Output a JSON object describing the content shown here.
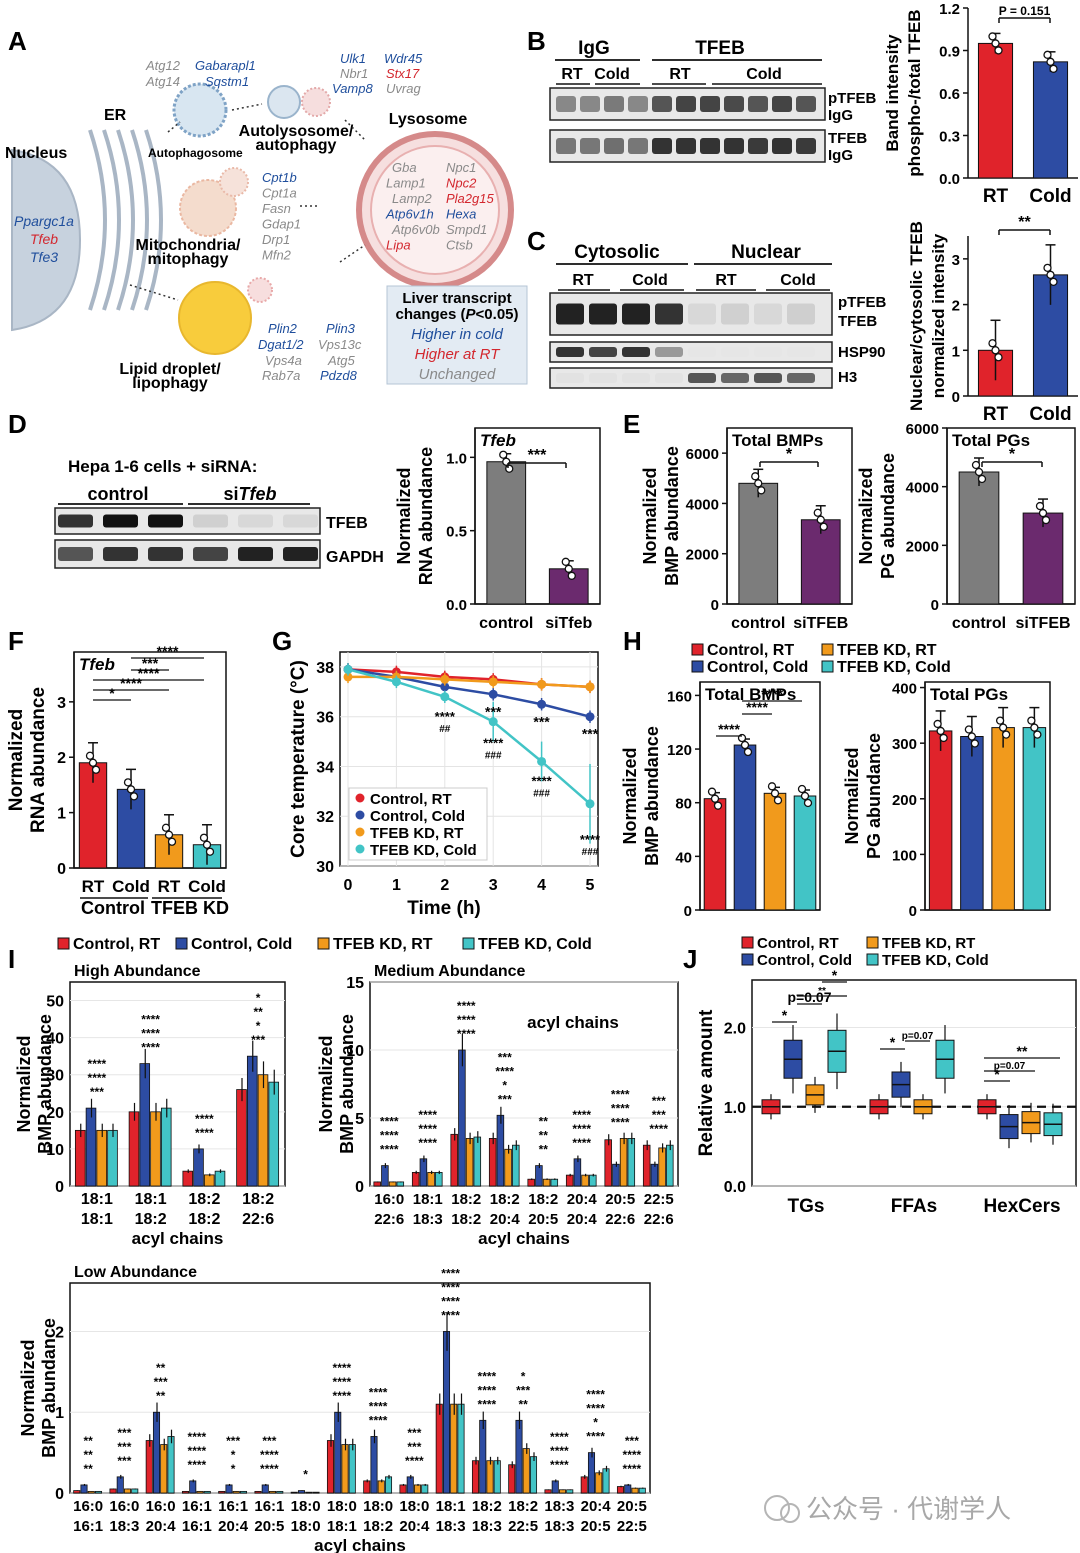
{
  "colors": {
    "red": "#e0232b",
    "blue": "#2d4ca3",
    "orange": "#f19a1c",
    "cyan": "#42c4c6",
    "gray": "#7d7d7d",
    "purple": "#6b2a6e",
    "gene_up_cold": "#1f4e9c",
    "gene_up_rt": "#d3272e",
    "gene_unchanged": "#8a8a8a"
  },
  "panels": {
    "A": {
      "letter": "A",
      "nucleus": "Nucleus",
      "er": "ER",
      "autophagosome": "Autophagosome",
      "autolysosome": "Autolysosome/ autophagy",
      "mito": "Mitochondria/ mitophagy",
      "lysosome": "Lysosome",
      "lipid": "Lipid droplet/ lipophagy",
      "nucleus_genes": [
        {
          "name": "Ppargc1a",
          "c": "bl"
        },
        {
          "name": "Tfeb",
          "c": "rd"
        },
        {
          "name": "Tfe3",
          "c": "bl"
        }
      ],
      "autophagosome_genes": [
        {
          "name": "Atg12",
          "c": "g"
        },
        {
          "name": "Gabarapl1",
          "c": "bl"
        },
        {
          "name": "Atg14",
          "c": "g"
        },
        {
          "name": "Sqstm1",
          "c": "bl"
        }
      ],
      "autolyso_genes": [
        {
          "name": "Ulk1",
          "c": "bl"
        },
        {
          "name": "Wdr45",
          "c": "bl"
        },
        {
          "name": "Nbr1",
          "c": "g"
        },
        {
          "name": "Stx17",
          "c": "rd"
        },
        {
          "name": "Vamp8",
          "c": "bl"
        },
        {
          "name": "Uvrag",
          "c": "g"
        }
      ],
      "mito_genes": [
        {
          "name": "Cpt1b",
          "c": "bl"
        },
        {
          "name": "Cpt1a",
          "c": "g"
        },
        {
          "name": "Fasn",
          "c": "g"
        },
        {
          "name": "Gdap1",
          "c": "g"
        },
        {
          "name": "Drp1",
          "c": "g"
        },
        {
          "name": "Mfn2",
          "c": "g"
        }
      ],
      "lyso_genes": [
        {
          "name": "Gba",
          "c": "g"
        },
        {
          "name": "Npc1",
          "c": "g"
        },
        {
          "name": "Lamp1",
          "c": "g"
        },
        {
          "name": "Npc2",
          "c": "rd"
        },
        {
          "name": "Lamp2",
          "c": "g"
        },
        {
          "name": "Pla2g15",
          "c": "rd"
        },
        {
          "name": "Atp6v1h",
          "c": "bl"
        },
        {
          "name": "Hexa",
          "c": "bl"
        },
        {
          "name": "Atp6v0b",
          "c": "g"
        },
        {
          "name": "Smpd1",
          "c": "g"
        },
        {
          "name": "Lipa",
          "c": "rd"
        },
        {
          "name": "Ctsb",
          "c": "g"
        }
      ],
      "lipid_genes": [
        {
          "name": "Plin2",
          "c": "bl"
        },
        {
          "name": "Plin3",
          "c": "bl"
        },
        {
          "name": "Dgat1/2",
          "c": "bl"
        },
        {
          "name": "Vps13c",
          "c": "g"
        },
        {
          "name": "Vps4a",
          "c": "g"
        },
        {
          "name": "Atg5",
          "c": "g"
        },
        {
          "name": "Rab7a",
          "c": "g"
        },
        {
          "name": "Pdzd8",
          "c": "bl"
        }
      ],
      "legend": {
        "title1": "Liver transcript",
        "title2": "changes (",
        "p": "P",
        "title3": "<0.05)",
        "higher_cold": "Higher in cold",
        "higher_rt": "Higher at RT",
        "unchanged": "Unchanged"
      }
    },
    "B": {
      "letter": "B",
      "igg": "IgG",
      "tfeb": "TFEB",
      "rt": "RT",
      "cold": "Cold",
      "row1a": "pTFEB",
      "row1b": "IgG",
      "row2a": "TFEB",
      "row2b": "IgG"
    },
    "C": {
      "letter": "C",
      "cytosolic": "Cytosolic",
      "nuclear": "Nuclear",
      "rt": "RT",
      "cold": "Cold",
      "row1a": "pTFEB",
      "row1b": "TFEB",
      "row2": "HSP90",
      "row3": "H3"
    },
    "D": {
      "letter": "D",
      "title": "Hepa 1-6 cells + siRNA:",
      "control": "control",
      "si": "si",
      "tfeb_it": "Tfeb",
      "row1": "TFEB",
      "row2": "GAPDH"
    },
    "E": {
      "letter": "E"
    },
    "F": {
      "letter": "F"
    },
    "G": {
      "letter": "G"
    },
    "H": {
      "letter": "H"
    },
    "I": {
      "letter": "I"
    },
    "J": {
      "letter": "J"
    }
  },
  "legend4": {
    "c_rt": "Control, RT",
    "c_cold": "Control, Cold",
    "k_rt": "TFEB KD, RT",
    "k_cold": "TFEB KD, Cold"
  },
  "watermark": "公众号 · 代谢学人",
  "chart_data": [
    {
      "id": "B",
      "type": "bar",
      "categories": [
        "RT",
        "Cold"
      ],
      "values": [
        0.95,
        0.82
      ],
      "ylabel": "Band intensity phospho-/total TFEB",
      "ylim": [
        0,
        1.2
      ],
      "yticks": [
        "0.0",
        "0.3",
        "0.6",
        "0.9",
        "1.2"
      ],
      "annotation": "P = 0.151"
    },
    {
      "id": "C",
      "type": "bar",
      "categories": [
        "RT",
        "Cold"
      ],
      "values": [
        1.0,
        2.65
      ],
      "ylabel": "Nuclear/cytosolic TFEB normalized intensity",
      "ylim": [
        0,
        3.5
      ],
      "yticks": [
        "0",
        "1",
        "2",
        "3"
      ],
      "annotation": "**"
    },
    {
      "id": "D",
      "type": "bar",
      "title": "Tfeb",
      "categories": [
        "control",
        "siTfeb"
      ],
      "values": [
        0.97,
        0.24
      ],
      "ylabel": "Normalized RNA abundance",
      "ylim": [
        0,
        1.2
      ],
      "yticks": [
        "0.0",
        "0.5",
        "1.0"
      ],
      "annotation": "***"
    },
    {
      "id": "E1",
      "type": "bar",
      "title": "Total BMPs",
      "categories": [
        "control",
        "siTFEB"
      ],
      "values": [
        4800,
        3350
      ],
      "ylabel": "Normalized BMP abundance",
      "ylim": [
        0,
        7000
      ],
      "yticks": [
        "0",
        "2000",
        "4000",
        "6000"
      ],
      "annotation": "*"
    },
    {
      "id": "E2",
      "type": "bar",
      "title": "Total PGs",
      "categories": [
        "control",
        "siTFEB"
      ],
      "values": [
        4500,
        3100
      ],
      "ylabel": "Normalized PG abundance",
      "ylim": [
        0,
        6000
      ],
      "yticks": [
        "0",
        "2000",
        "4000",
        "6000"
      ],
      "annotation": "*"
    },
    {
      "id": "F",
      "type": "bar",
      "title": "Tfeb",
      "categories": [
        "RT",
        "Cold",
        "RT",
        "Cold"
      ],
      "groups": [
        "Control",
        "TFEB KD"
      ],
      "values": [
        1.9,
        1.42,
        0.6,
        0.42
      ],
      "ylabel": "Normalized RNA abundance",
      "ylim": [
        0,
        3.9
      ],
      "yticks": [
        "0",
        "1",
        "2",
        "3"
      ],
      "annotations": [
        "*",
        "****",
        "***",
        "****",
        "****"
      ]
    },
    {
      "id": "G",
      "type": "line",
      "x": [
        0,
        1,
        2,
        3,
        4,
        5
      ],
      "xlabel": "Time (h)",
      "ylabel": "Core temperature (°C)",
      "ylim": [
        30,
        38.6
      ],
      "yticks": [
        "30",
        "32",
        "34",
        "36",
        "38"
      ],
      "series": [
        {
          "name": "Control, RT",
          "values": [
            37.9,
            37.8,
            37.6,
            37.5,
            37.3,
            37.2
          ]
        },
        {
          "name": "Control, Cold",
          "values": [
            37.9,
            37.6,
            37.2,
            36.9,
            36.5,
            36.0
          ]
        },
        {
          "name": "TFEB KD, RT",
          "values": [
            37.6,
            37.6,
            37.5,
            37.4,
            37.3,
            37.2
          ]
        },
        {
          "name": "TFEB KD, Cold",
          "values": [
            37.9,
            37.4,
            36.8,
            35.8,
            34.2,
            32.5
          ]
        }
      ],
      "annotations": [
        {
          "x": 2,
          "stars": "****",
          "hash": "##"
        },
        {
          "x": 3,
          "stars": "****",
          "hash": "###"
        },
        {
          "x": 4,
          "stars": "****",
          "hash": "###"
        },
        {
          "x": 5,
          "stars": "****",
          "hash": "###"
        },
        {
          "x": 3,
          "top": "***"
        },
        {
          "x": 4,
          "top": "***"
        },
        {
          "x": 5,
          "top": "***"
        }
      ]
    },
    {
      "id": "H1",
      "type": "bar",
      "title": "Total BMPs",
      "categories": [
        "Control, RT",
        "Control, Cold",
        "TFEB KD, RT",
        "TFEB KD, Cold"
      ],
      "values": [
        83,
        123,
        87,
        85
      ],
      "ylabel": "Normalized BMP abundance",
      "ylim": [
        0,
        170
      ],
      "yticks": [
        "0",
        "40",
        "80",
        "120",
        "160"
      ],
      "annotations": [
        "****",
        "****",
        "****"
      ]
    },
    {
      "id": "H2",
      "type": "bar",
      "title": "Total PGs",
      "categories": [
        "Control, RT",
        "Control, Cold",
        "TFEB KD, RT",
        "TFEB KD, Cold"
      ],
      "values": [
        322,
        312,
        328,
        328
      ],
      "ylabel": "Normalized PG abundance",
      "ylim": [
        0,
        410
      ],
      "yticks": [
        "0",
        "100",
        "200",
        "300",
        "400"
      ]
    },
    {
      "id": "I1",
      "type": "bar",
      "title": "High Abundance",
      "xlabel": "acyl chains",
      "ylabel": "Normalized BMP abundance",
      "ylim": [
        0,
        55
      ],
      "yticks": [
        "0",
        "10",
        "20",
        "30",
        "40",
        "50"
      ],
      "categories": [
        "18:1 18:1",
        "18:1 18:2",
        "18:2 18:2",
        "18:2 22:6"
      ],
      "series": [
        {
          "name": "Control, RT",
          "values": [
            15,
            20,
            4,
            26
          ]
        },
        {
          "name": "Control, Cold",
          "values": [
            21,
            33,
            10,
            35
          ]
        },
        {
          "name": "TFEB KD, RT",
          "values": [
            15,
            20,
            3,
            30
          ]
        },
        {
          "name": "TFEB KD, Cold",
          "values": [
            15,
            21,
            4,
            28
          ]
        }
      ]
    },
    {
      "id": "I2",
      "type": "bar",
      "title": "Medium Abundance",
      "xlabel": "acyl chains",
      "ylabel": "Normalized BMP abundance",
      "ylim": [
        0,
        15
      ],
      "yticks": [
        "0",
        "5",
        "10",
        "15"
      ],
      "categories": [
        "16:0 22:6",
        "18:1 18:3",
        "18:2 18:2",
        "18:2 20:4",
        "18:2 20:5",
        "20:4 20:4",
        "20:5 22:6",
        "22:5 22:6"
      ],
      "series": [
        {
          "name": "Control, RT",
          "values": [
            0.3,
            1.0,
            3.8,
            3.5,
            0.5,
            0.8,
            3.4,
            3.0
          ]
        },
        {
          "name": "Control, Cold",
          "values": [
            1.5,
            2.0,
            10.0,
            5.2,
            1.5,
            2.0,
            1.6,
            1.6
          ]
        },
        {
          "name": "TFEB KD, RT",
          "values": [
            0.3,
            1.0,
            3.5,
            2.7,
            0.5,
            0.8,
            3.5,
            2.8
          ]
        },
        {
          "name": "TFEB KD, Cold",
          "values": [
            0.3,
            1.0,
            3.6,
            3.0,
            0.5,
            0.8,
            3.5,
            3.0
          ]
        }
      ],
      "annotation": "acyl chains"
    },
    {
      "id": "I3",
      "type": "bar",
      "title": "Low Abundance",
      "xlabel": "acyl chains",
      "ylabel": "Normalized BMP abundance",
      "ylim": [
        0,
        2.6
      ],
      "yticks": [
        "0",
        "1",
        "2"
      ],
      "categories": [
        "16:0 16:1",
        "16:0 18:3",
        "16:0 20:4",
        "16:1 16:1",
        "16:1 20:4",
        "16:1 20:5",
        "18:0 18:0",
        "18:0 18:1",
        "18:0 18:2",
        "18:0 20:4",
        "18:1 18:3",
        "18:2 18:3",
        "18:2 22:5",
        "18:3 18:3",
        "20:4 20:5",
        "20:5 22:5"
      ],
      "series": [
        {
          "name": "Control, RT",
          "values": [
            0.03,
            0.05,
            0.65,
            0.02,
            0.02,
            0.02,
            0.01,
            0.65,
            0.15,
            0.1,
            1.1,
            0.4,
            0.35,
            0.04,
            0.2,
            0.08
          ]
        },
        {
          "name": "Control, Cold",
          "values": [
            0.1,
            0.2,
            1.0,
            0.15,
            0.1,
            0.1,
            0.03,
            1.0,
            0.7,
            0.2,
            2.0,
            0.9,
            0.9,
            0.15,
            0.5,
            0.1
          ]
        },
        {
          "name": "TFEB KD, RT",
          "values": [
            0.02,
            0.05,
            0.6,
            0.02,
            0.02,
            0.02,
            0.01,
            0.6,
            0.15,
            0.1,
            1.1,
            0.4,
            0.55,
            0.04,
            0.25,
            0.06
          ]
        },
        {
          "name": "TFEB KD, Cold",
          "values": [
            0.02,
            0.05,
            0.7,
            0.02,
            0.02,
            0.02,
            0.01,
            0.6,
            0.2,
            0.1,
            1.1,
            0.4,
            0.45,
            0.04,
            0.3,
            0.06
          ]
        }
      ]
    },
    {
      "id": "J",
      "type": "box",
      "categories": [
        "TGs",
        "FFAs",
        "HexCers"
      ],
      "ylabel": "Relative amount",
      "ylim": [
        0,
        2.6
      ],
      "yticks": [
        "0.0",
        "1.0",
        "2.0"
      ],
      "series": [
        {
          "name": "Control, RT",
          "values": [
            1.0,
            1.0,
            1.0
          ]
        },
        {
          "name": "Control, Cold",
          "values": [
            1.6,
            1.28,
            0.75
          ]
        },
        {
          "name": "TFEB KD, RT",
          "values": [
            1.15,
            1.0,
            0.8
          ]
        },
        {
          "name": "TFEB KD, Cold",
          "values": [
            1.7,
            1.6,
            0.78
          ]
        }
      ],
      "annotations": [
        "*",
        "p=0.07",
        "**",
        "*",
        "*",
        "p=0.07",
        "*",
        "p=0.07",
        "**"
      ]
    }
  ]
}
